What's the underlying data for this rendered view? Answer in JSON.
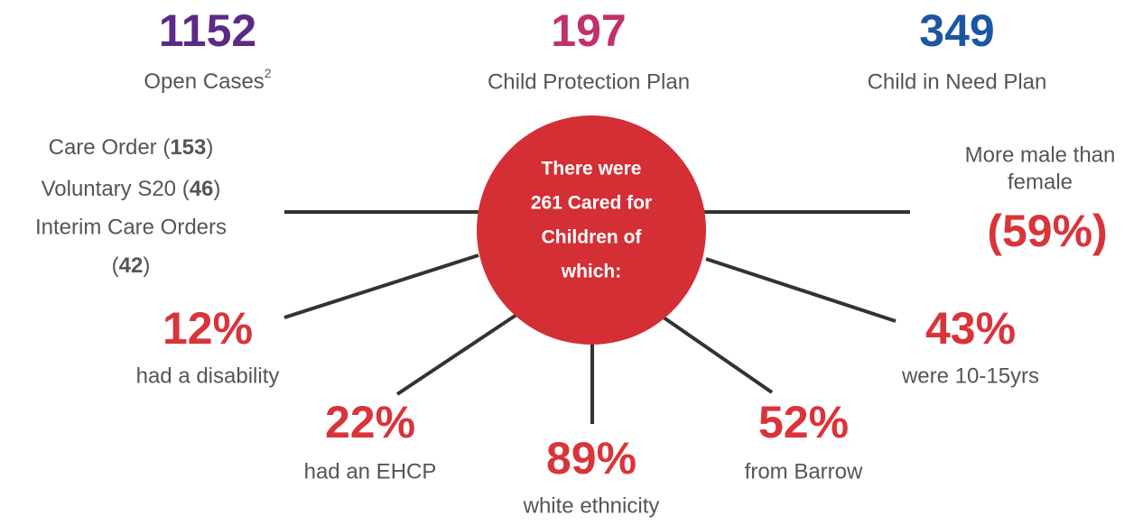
{
  "top_stats": [
    {
      "value": "1152",
      "label": "Open Cases",
      "note": "2",
      "color": "#5b2a86"
    },
    {
      "value": "197",
      "label": "Child Protection Plan",
      "color": "#c2306b"
    },
    {
      "value": "349",
      "label": "Child in Need Plan",
      "color": "#1c56a3"
    }
  ],
  "center": {
    "lines": [
      "There were",
      "261 Cared for",
      "Children of",
      "which:"
    ]
  },
  "legal_status": {
    "lines": [
      [
        {
          "text": "Care Order ("
        },
        {
          "text": "153",
          "bold": true
        },
        {
          "text": ")"
        }
      ],
      [
        {
          "text": "Voluntary S20 ("
        },
        {
          "text": "46",
          "bold": true
        },
        {
          "text": ")"
        }
      ],
      [
        {
          "text": "Interim Care Orders"
        }
      ],
      [
        {
          "text": "("
        },
        {
          "text": "42",
          "bold": true
        },
        {
          "text": ")"
        }
      ]
    ]
  },
  "gender": {
    "lines": [
      "More male than",
      "female"
    ],
    "value": "(59%)"
  },
  "facts": [
    {
      "value": "12%",
      "label": "had a disability"
    },
    {
      "value": "22%",
      "label": "had an EHCP"
    },
    {
      "value": "89%",
      "label": "white ethnicity"
    },
    {
      "value": "52%",
      "label": "from Barrow"
    },
    {
      "value": "43%",
      "label": "were 10-15yrs"
    }
  ]
}
